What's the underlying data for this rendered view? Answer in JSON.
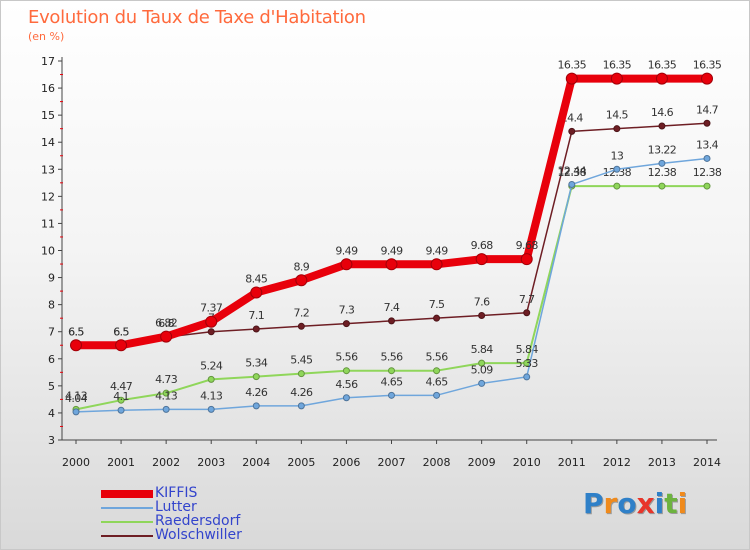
{
  "title": "Evolution du Taux de Taxe d'Habitation",
  "unit": "(en %)",
  "logo": {
    "letters": [
      {
        "ch": "P",
        "color": "#2f80c8"
      },
      {
        "ch": "r",
        "color": "#f08a1c"
      },
      {
        "ch": "o",
        "color": "#2f80c8"
      },
      {
        "ch": "x",
        "color": "#e8352a"
      },
      {
        "ch": "i",
        "color": "#2f80c8"
      },
      {
        "ch": "t",
        "color": "#6db33f"
      },
      {
        "ch": "i",
        "color": "#f08a1c"
      }
    ]
  },
  "chart_data": {
    "type": "line",
    "title": "Evolution du Taux de Taxe d'Habitation",
    "subtitle": "(en %)",
    "x": [
      "2000",
      "2001",
      "2002",
      "2003",
      "2004",
      "2005",
      "2006",
      "2007",
      "2008",
      "2009",
      "2010",
      "2011",
      "2012",
      "2013",
      "2014"
    ],
    "yticks": [
      "3",
      "4",
      "5",
      "6",
      "7",
      "8",
      "9",
      "10",
      "11",
      "12",
      "13",
      "14",
      "15",
      "16",
      "17"
    ],
    "ylim": [
      3,
      17
    ],
    "grid": false,
    "legend": "bottom-left",
    "series": [
      {
        "name": "Wolschwiller",
        "color": "#6e1e24",
        "width": 1.5,
        "values": [
          6.5,
          6.5,
          6.8,
          7.0,
          7.1,
          7.2,
          7.3,
          7.4,
          7.5,
          7.6,
          7.7,
          14.4,
          14.5,
          14.6,
          14.7
        ],
        "labels": [
          "6.5",
          "6.5",
          "6.8",
          "7",
          "7.1",
          "7.2",
          "7.3",
          "7.4",
          "7.5",
          "7.6",
          "7.7",
          "14.4",
          "14.5",
          "14.6",
          "14.7"
        ]
      },
      {
        "name": "Raedersdorf",
        "color": "#8fd65a",
        "width": 2,
        "values": [
          4.13,
          4.47,
          4.73,
          5.24,
          5.34,
          5.45,
          5.56,
          5.56,
          5.56,
          5.84,
          5.84,
          12.38,
          12.38,
          12.38,
          12.38
        ],
        "labels": [
          "4.13",
          "4.47",
          "4.73",
          "5.24",
          "5.34",
          "5.45",
          "5.56",
          "5.56",
          "5.56",
          "5.84",
          "5.84",
          "12.38",
          "12.38",
          "12.38",
          "12.38"
        ]
      },
      {
        "name": "Lutter",
        "color": "#6fa6dc",
        "width": 1.5,
        "values": [
          4.04,
          4.1,
          4.13,
          4.13,
          4.26,
          4.26,
          4.56,
          4.65,
          4.65,
          5.09,
          5.33,
          12.44,
          13.0,
          13.22,
          13.4
        ],
        "labels": [
          "4.04",
          "4.1",
          "4.13",
          "4.13",
          "4.26",
          "4.26",
          "4.56",
          "4.65",
          "4.65",
          "5.09",
          "5.33",
          "12.44",
          "13",
          "13.22",
          "13.4"
        ]
      },
      {
        "name": "KIFFIS",
        "color": "#e8000b",
        "width": 8,
        "values": [
          6.5,
          6.5,
          6.82,
          7.37,
          8.45,
          8.9,
          9.49,
          9.49,
          9.49,
          9.68,
          9.68,
          16.35,
          16.35,
          16.35,
          16.35
        ],
        "labels": [
          "6.5",
          "6.5",
          "6.82",
          "7.37",
          "8.45",
          "8.9",
          "9.49",
          "9.49",
          "9.49",
          "9.68",
          "9.68",
          "16.35",
          "16.35",
          "16.35",
          "16.35"
        ]
      }
    ],
    "legend_order": [
      "KIFFIS",
      "Lutter",
      "Raedersdorf",
      "Wolschwiller"
    ]
  }
}
